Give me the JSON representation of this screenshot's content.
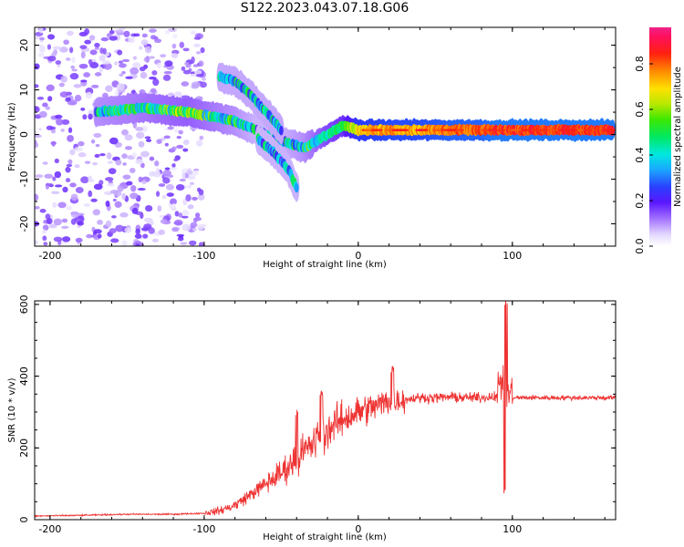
{
  "page": {
    "title": "S122.2023.043.07.18.G06"
  },
  "colors": {
    "snr_line": "#ee3333",
    "axis": "#000000"
  },
  "chart_data": [
    {
      "type": "heatmap",
      "xlabel": "Height of straight line (km)",
      "ylabel": "Frequency (Hz)",
      "xlim": [
        -210,
        167
      ],
      "ylim": [
        -25,
        24
      ],
      "xticks": [
        -200,
        -100,
        0,
        100
      ],
      "xtick_labels": [
        "-200",
        "-100",
        "0",
        "100"
      ],
      "yticks": [
        20,
        10,
        0,
        -10,
        -20
      ],
      "ytick_labels": [
        "20",
        "10",
        "0",
        "-10",
        "-20"
      ],
      "colorbar": {
        "label": "Normalized spectral amplitude",
        "range": [
          0,
          0.96
        ],
        "ticks": [
          0.0,
          0.2,
          0.4,
          0.6,
          0.8
        ],
        "tick_labels": [
          "0.0",
          "0.2",
          "0.4",
          "0.6",
          "0.8"
        ],
        "colormap": "rainbow (white-lavender-purple-blue-cyan-green-yellow-red-magenta)"
      },
      "features": [
        {
          "name": "noise scatter",
          "x_range": [
            -210,
            -100
          ],
          "freq_range": [
            -25,
            24
          ],
          "amplitude": 0.05
        },
        {
          "name": "signal band",
          "x": [
            -170,
            -140,
            -110,
            -95,
            -80,
            -60,
            -45,
            -35,
            -20,
            -10,
            0,
            20,
            40,
            60,
            80,
            88,
            100,
            130,
            165
          ],
          "freq": [
            5,
            6,
            5,
            4,
            3,
            0,
            -2,
            -3,
            0,
            2,
            1,
            1,
            1,
            1,
            1,
            1,
            1,
            1,
            1
          ],
          "amplitude": [
            0.3,
            0.35,
            0.4,
            0.35,
            0.3,
            0.2,
            0.25,
            0.3,
            0.45,
            0.5,
            0.75,
            0.8,
            0.8,
            0.85,
            0.85,
            0.9,
            0.9,
            0.9,
            0.9
          ]
        },
        {
          "name": "upper branch",
          "x": [
            -90,
            -80,
            -70,
            -60,
            -50
          ],
          "freq": [
            13,
            12,
            9,
            5,
            1
          ],
          "amplitude": 0.25
        },
        {
          "name": "lower branch",
          "x": [
            -65,
            -55,
            -45,
            -40
          ],
          "freq": [
            -1,
            -4,
            -8,
            -12
          ],
          "amplitude": 0.2
        }
      ]
    },
    {
      "type": "line",
      "xlabel": "Height of straight line (km)",
      "ylabel": "SNR (10 * v/v)",
      "xlim": [
        -210,
        167
      ],
      "ylim": [
        0,
        610
      ],
      "xticks": [
        -200,
        -100,
        0,
        100
      ],
      "xtick_labels": [
        "-200",
        "-100",
        "0",
        "100"
      ],
      "yticks": [
        0,
        200,
        400,
        600
      ],
      "ytick_labels": [
        "0",
        "200",
        "400",
        "600"
      ],
      "series": [
        {
          "x": [
            -210,
            -180,
            -150,
            -120,
            -100,
            -90,
            -80,
            -70,
            -60,
            -50,
            -40,
            -30,
            -20,
            -10,
            0,
            10,
            20,
            30,
            40,
            50,
            60,
            70,
            80,
            90,
            94,
            97,
            100,
            110,
            130,
            150,
            167
          ],
          "y": [
            10,
            12,
            15,
            15,
            18,
            25,
            40,
            70,
            100,
            130,
            170,
            210,
            250,
            280,
            300,
            315,
            330,
            335,
            340,
            340,
            342,
            340,
            340,
            345,
            400,
            360,
            340,
            340,
            340,
            340,
            340
          ]
        }
      ],
      "spikes": [
        {
          "x": -40,
          "y": 300
        },
        {
          "x": -24,
          "y": 350
        },
        {
          "x": 22,
          "y": 420
        },
        {
          "x": 95,
          "y": 80
        },
        {
          "x": 96,
          "y": 600
        }
      ]
    }
  ]
}
